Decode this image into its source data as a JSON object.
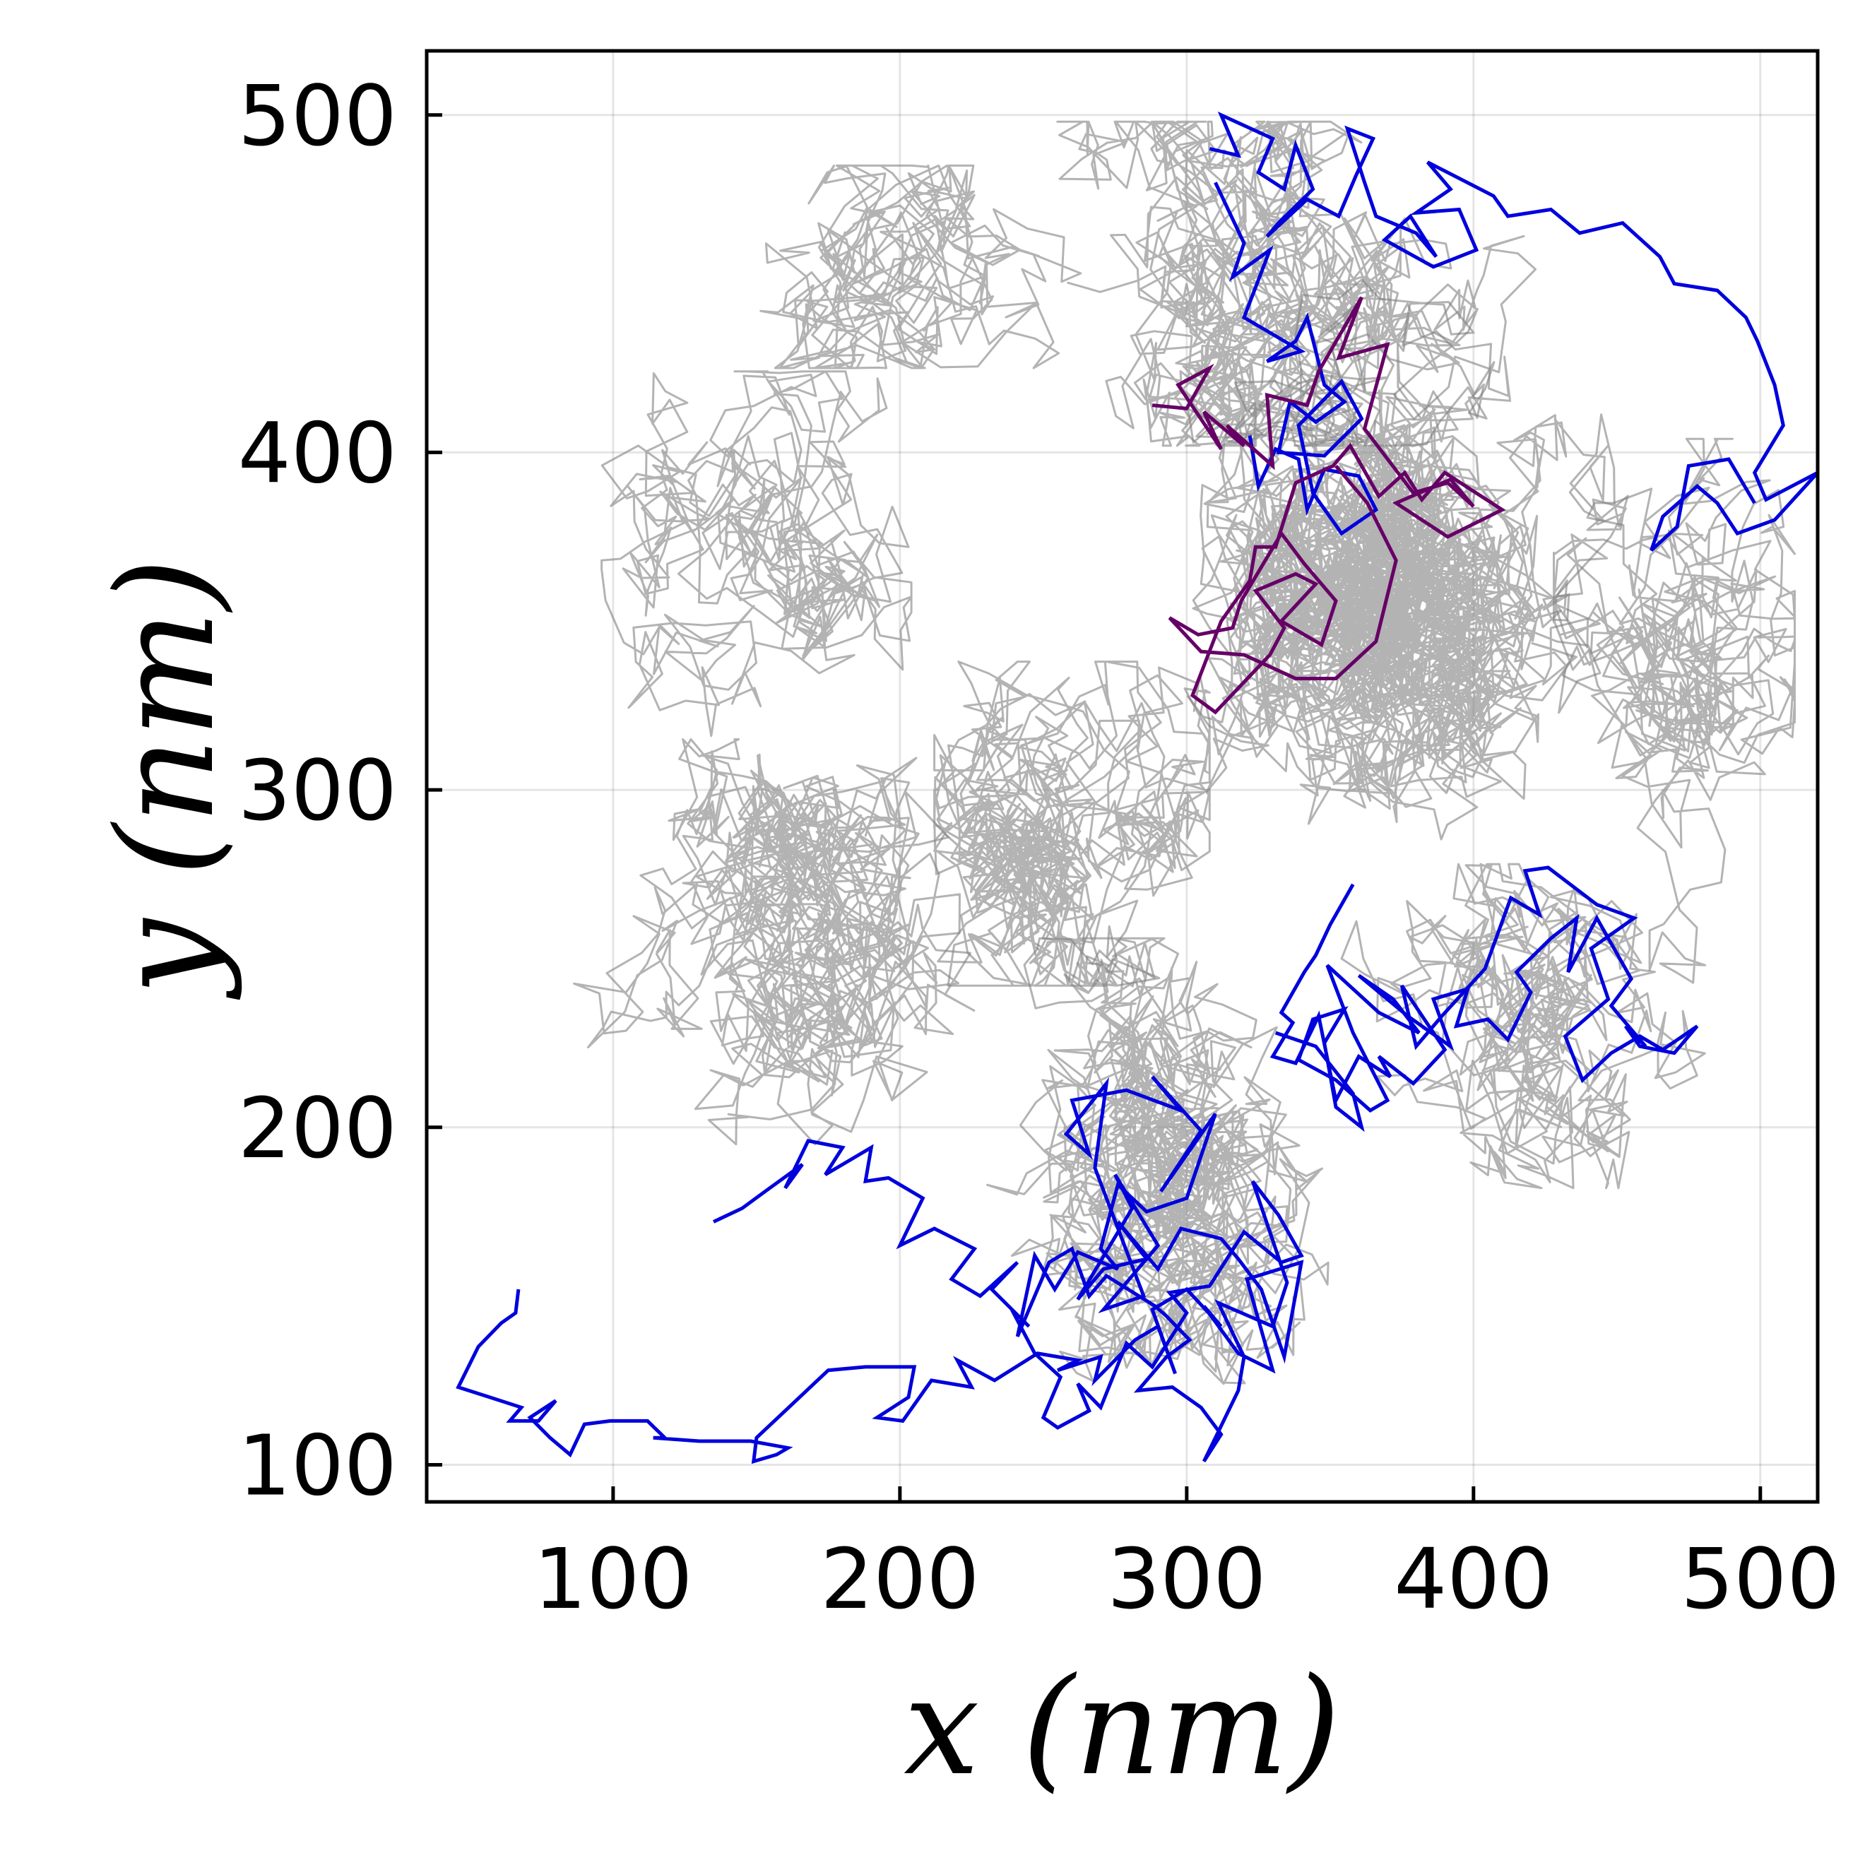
{
  "chart_data": {
    "type": "line",
    "title": "",
    "xlabel": "x (nm)",
    "ylabel": "y (nm)",
    "xlim": [
      35,
      520
    ],
    "ylim": [
      89,
      519
    ],
    "xticks": [
      100,
      200,
      300,
      400,
      500
    ],
    "yticks": [
      100,
      200,
      300,
      400,
      500
    ],
    "x_tick_labels": [
      "100",
      "200",
      "300",
      "400",
      "500"
    ],
    "y_tick_labels": [
      "100",
      "200",
      "300",
      "400",
      "500"
    ],
    "grid": true,
    "legend": "none",
    "background_trajectories": {
      "color": "#808080",
      "opacity": 0.6,
      "description_points": "dense random-walk cloud",
      "clusters": [
        {
          "center": [
            365,
            360
          ],
          "spread": [
            80,
            90
          ],
          "steps": 2600
        },
        {
          "center": [
            330,
            450
          ],
          "spread": [
            80,
            40
          ],
          "steps": 900
        },
        {
          "center": [
            190,
            455
          ],
          "spread": [
            70,
            25
          ],
          "steps": 350
        },
        {
          "center": [
            260,
            290
          ],
          "spread": [
            40,
            40
          ],
          "steps": 700
        },
        {
          "center": [
            160,
            255
          ],
          "spread": [
            70,
            50
          ],
          "steps": 900
        },
        {
          "center": [
            150,
            370
          ],
          "spread": [
            45,
            45
          ],
          "steps": 450
        },
        {
          "center": [
            290,
            190
          ],
          "spread": [
            100,
            55
          ],
          "steps": 1100
        },
        {
          "center": [
            420,
            230
          ],
          "spread": [
            55,
            40
          ],
          "steps": 500
        },
        {
          "center": [
            470,
            320
          ],
          "spread": [
            35,
            70
          ],
          "steps": 500
        }
      ]
    },
    "series": [
      {
        "color": "#0000dd",
        "x": [
          67,
          66,
          61,
          53,
          46,
          57,
          68,
          64,
          74,
          80,
          71,
          78,
          85,
          90,
          99,
          112,
          118,
          114,
          130,
          148,
          161,
          157,
          149,
          150,
          175,
          188,
          205,
          203,
          192,
          201,
          211,
          225,
          220,
          233,
          248,
          262,
          255,
          270,
          268,
          282,
          290,
          296,
          288,
          300,
          312,
          306,
          318,
          330,
          321,
          340,
          334,
          326,
          318,
          312,
          298,
          290,
          276,
          286,
          271,
          262,
          281,
          275,
          290,
          271,
          285,
          268,
          272,
          258,
          266,
          260,
          279,
          298,
          288,
          305,
          291,
          310,
          300,
          286,
          276,
          270,
          276,
          262,
          254,
          247,
          241,
          252,
          260,
          266,
          272,
          289,
          293,
          301,
          293,
          283,
          295,
          305,
          312,
          306,
          318,
          320,
          311,
          330,
          335,
          323,
          332,
          340,
          333,
          320,
          308,
          294,
          300,
          288,
          279,
          270,
          262,
          266,
          255,
          250,
          256,
          247,
          239,
          245,
          232,
          241,
          228,
          218,
          226,
          212,
          200,
          208,
          196,
          188,
          190,
          174,
          180,
          168,
          160,
          166,
          153,
          145,
          135
        ],
        "y": [
          152,
          145,
          142,
          135,
          123,
          120,
          117,
          113,
          113,
          119,
          114,
          108,
          103,
          112,
          113,
          113,
          108,
          108,
          107,
          107,
          105,
          103,
          101,
          108,
          128,
          129,
          129,
          120,
          114,
          113,
          125,
          123,
          131,
          125,
          133,
          131,
          128,
          132,
          125,
          137,
          141,
          127,
          146,
          152,
          141,
          147,
          133,
          128,
          155,
          160,
          132,
          152,
          161,
          167,
          170,
          158,
          172,
          161,
          158,
          149,
          176,
          186,
          165,
          146,
          150,
          188,
          213,
          198,
          192,
          208,
          211,
          205,
          215,
          199,
          181,
          204,
          179,
          175,
          183,
          164,
          158,
          163,
          152,
          162,
          138,
          160,
          164,
          150,
          156,
          147,
          144,
          137,
          132,
          122,
          123,
          117,
          109,
          101,
          122,
          132,
          148,
          141,
          154,
          184,
          174,
          162,
          160,
          169,
          153,
          151,
          145,
          129,
          136,
          117,
          124,
          116,
          111,
          114,
          126,
          133,
          146,
          141,
          152,
          160,
          150,
          155,
          164,
          170,
          165,
          179,
          185,
          184,
          194,
          186,
          194,
          196,
          182,
          189,
          181,
          176,
          172
        ],
        "notes": "lower-left to center blue segment (trajectory 1)"
      },
      {
        "color": "#0000dd",
        "x": [
          331,
          345,
          358,
          361,
          352,
          348,
          355,
          344,
          339,
          352,
          364,
          370,
          358,
          349,
          367,
          381,
          372,
          360,
          377,
          392,
          386,
          398,
          394,
          405,
          412,
          420,
          415,
          427,
          436,
          433,
          443,
          455,
          448,
          460,
          453,
          458,
          470,
          478,
          466,
          458,
          448,
          438,
          432,
          447,
          441,
          456,
          443,
          426,
          418,
          423,
          413,
          404,
          389,
          380,
          375,
          390,
          379,
          367,
          371,
          360,
          352,
          346,
          338,
          330,
          337,
          333,
          341,
          345,
          350,
          358
        ],
        "y": [
          228,
          224,
          210,
          200,
          206,
          225,
          235,
          232,
          220,
          214,
          205,
          208,
          228,
          248,
          234,
          228,
          238,
          245,
          233,
          224,
          238,
          241,
          230,
          232,
          226,
          240,
          246,
          256,
          262,
          246,
          262,
          244,
          236,
          224,
          230,
          224,
          222,
          230,
          223,
          227,
          222,
          214,
          227,
          238,
          253,
          262,
          266,
          277,
          276,
          263,
          268,
          247,
          233,
          224,
          242,
          223,
          213,
          221,
          215,
          221,
          208,
          233,
          219,
          221,
          231,
          234,
          246,
          251,
          260,
          272
        ],
        "notes": "right-middle blue segment (trajectory 2)"
      },
      {
        "color": "#0000dd",
        "x": [
          308,
          318,
          312,
          330,
          325,
          334,
          338,
          344,
          332,
          328,
          342,
          353,
          359,
          365,
          356,
          362,
          366,
          380,
          387,
          378,
          369,
          386,
          401,
          395,
          380,
          392,
          384,
          407,
          412,
          427,
          437,
          452,
          465,
          470,
          485,
          495,
          499,
          505,
          508,
          498,
          502,
          520,
          505,
          492,
          485,
          478,
          466,
          462,
          471,
          475,
          489,
          498
        ],
        "y": [
          490,
          488,
          500,
          493,
          483,
          478,
          491,
          478,
          468,
          464,
          475,
          470,
          482,
          493,
          496,
          480,
          470,
          465,
          458,
          470,
          463,
          455,
          460,
          472,
          471,
          478,
          486,
          476,
          470,
          472,
          465,
          468,
          458,
          450,
          448,
          440,
          433,
          420,
          408,
          394,
          386,
          394,
          380,
          376,
          385,
          390,
          381,
          371,
          378,
          396,
          398,
          385
        ],
        "notes": "top-right blue segment (trajectory 3a)"
      },
      {
        "color": "#0000dd",
        "x": [
          310,
          320,
          316,
          329,
          320,
          340,
          328,
          338,
          342,
          348,
          355,
          345,
          336,
          332,
          348,
          361,
          354,
          339,
          344,
          354,
          366,
          360,
          348,
          342,
          339,
          331,
          325,
          322
        ],
        "y": [
          480,
          462,
          452,
          460,
          440,
          430,
          427,
          433,
          440,
          420,
          415,
          409,
          415,
          400,
          399,
          410,
          421,
          408,
          388,
          376,
          383,
          393,
          395,
          383,
          398,
          401,
          390,
          405
        ],
        "notes": "upper-middle blue segment (trajectory 3b)"
      },
      {
        "color": "#660066",
        "x": [
          288,
          300,
          308,
          297,
          312,
          306,
          320,
          314,
          330,
          328,
          342,
          346,
          361,
          353,
          370,
          362,
          379,
          391,
          400,
          392,
          373,
          391,
          410,
          390,
          382,
          376,
          367,
          357,
          351,
          338,
          331,
          324,
          322,
          312,
          302,
          310,
          329,
          334,
          324,
          338,
          345,
          333,
          347,
          352,
          341,
          333,
          326,
          319,
          316,
          304,
          294,
          305,
          320,
          338,
          352,
          366,
          373,
          363,
          352
        ],
        "y": [
          414,
          413,
          425,
          420,
          401,
          412,
          402,
          408,
          396,
          417,
          414,
          424,
          446,
          428,
          432,
          407,
          388,
          391,
          384,
          392,
          385,
          375,
          383,
          394,
          386,
          394,
          387,
          402,
          396,
          391,
          372,
          372,
          362,
          350,
          328,
          323,
          340,
          348,
          359,
          364,
          361,
          350,
          343,
          356,
          367,
          376,
          366,
          356,
          348,
          346,
          351,
          341,
          340,
          333,
          333,
          344,
          368,
          385,
          396
        ],
        "notes": "upper-middle purple trajectory"
      }
    ]
  }
}
